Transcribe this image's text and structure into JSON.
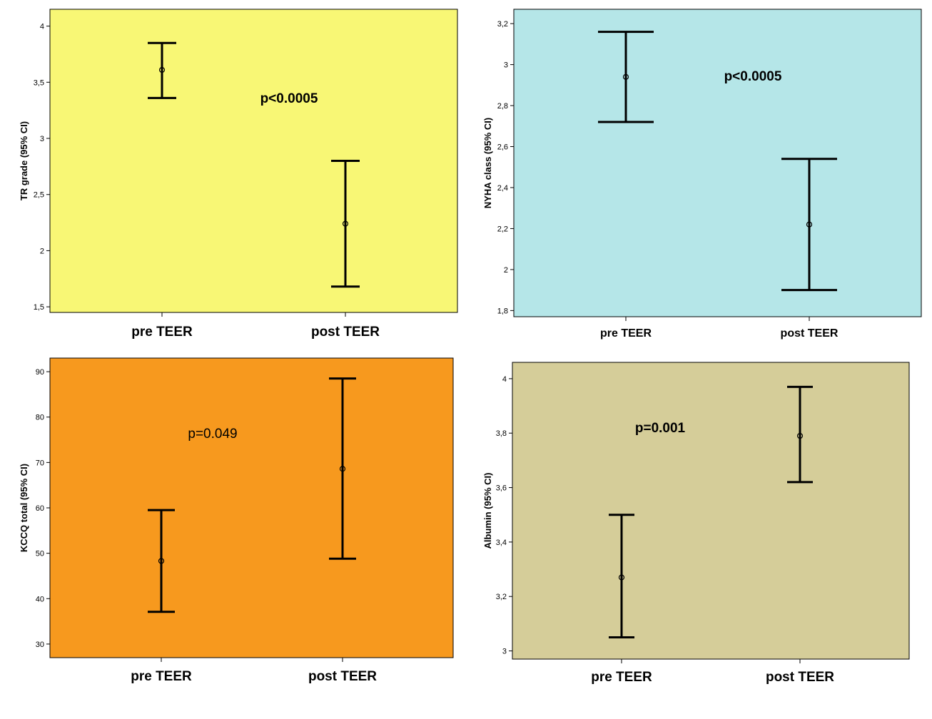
{
  "chart_data": [
    {
      "type": "errorbar",
      "ylabel": "TR grade (95% CI)",
      "ylim": [
        1.45,
        4.15
      ],
      "yticks": [
        1.5,
        2,
        2.5,
        3,
        3.5,
        4
      ],
      "ytick_labels": [
        "1,5",
        "2",
        "2,5",
        "3",
        "3,5",
        "4"
      ],
      "categories": [
        "pre TEER",
        "post TEER"
      ],
      "means": [
        3.61,
        2.24
      ],
      "lower": [
        3.36,
        1.68
      ],
      "upper": [
        3.85,
        2.8
      ],
      "annotation": "p<0.0005",
      "annotation_bold": true,
      "background": "#f8f775"
    },
    {
      "type": "errorbar",
      "ylabel": "NYHA class (95% CI)",
      "ylim": [
        1.77,
        3.27
      ],
      "yticks": [
        1.8,
        2,
        2.2,
        2.4,
        2.6,
        2.8,
        3,
        3.2
      ],
      "ytick_labels": [
        "1,8",
        "2",
        "2,2",
        "2,4",
        "2,6",
        "2,8",
        "3",
        "3,2"
      ],
      "categories": [
        "pre TEER",
        "post TEER"
      ],
      "means": [
        2.94,
        2.22
      ],
      "lower": [
        2.72,
        1.9
      ],
      "upper": [
        3.16,
        2.54
      ],
      "annotation": "p<0.0005",
      "annotation_bold": true,
      "background": "#b5e6e8"
    },
    {
      "type": "errorbar",
      "ylabel": "KCCQ total (95% CI)",
      "ylim": [
        27,
        93
      ],
      "yticks": [
        30,
        40,
        50,
        60,
        70,
        80,
        90
      ],
      "ytick_labels": [
        "30",
        "40",
        "50",
        "60",
        "70",
        "80",
        "90"
      ],
      "categories": [
        "pre TEER",
        "post TEER"
      ],
      "means": [
        48.3,
        68.6
      ],
      "lower": [
        37.1,
        48.8
      ],
      "upper": [
        59.5,
        88.5
      ],
      "annotation": "p=0.049",
      "annotation_bold": false,
      "background": "#f7991e"
    },
    {
      "type": "errorbar",
      "ylabel": "Albumin (95% CI)",
      "ylim": [
        2.97,
        4.06
      ],
      "yticks": [
        3,
        3.2,
        3.4,
        3.6,
        3.8,
        4
      ],
      "ytick_labels": [
        "3",
        "3,2",
        "3,4",
        "3,6",
        "3,8",
        "4"
      ],
      "categories": [
        "pre TEER",
        "post TEER"
      ],
      "means": [
        3.27,
        3.79
      ],
      "lower": [
        3.05,
        3.62
      ],
      "upper": [
        3.5,
        3.97
      ],
      "annotation": "p=0.001",
      "annotation_bold": true,
      "background": "#d5cd99"
    }
  ]
}
